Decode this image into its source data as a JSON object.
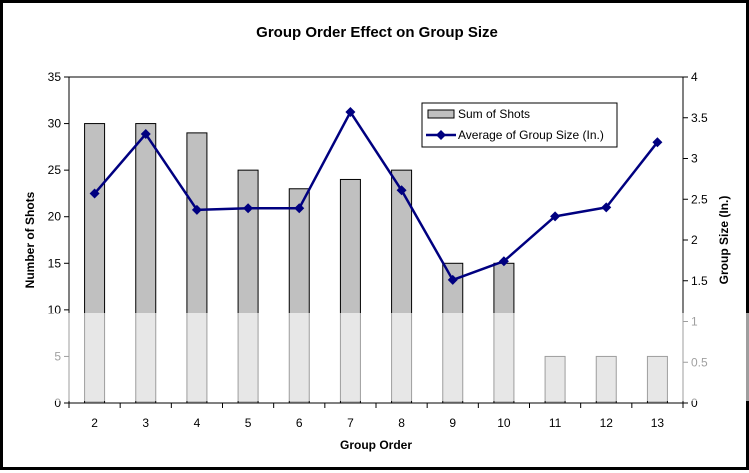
{
  "chart_data": {
    "type": "bar",
    "title": "Group Order Effect on Group Size",
    "xlabel": "Group Order",
    "ylabel": "Number of Shots",
    "y2label": "Group Size (In.)",
    "categories": [
      "2",
      "3",
      "4",
      "5",
      "6",
      "7",
      "8",
      "9",
      "10",
      "11",
      "12",
      "13"
    ],
    "ylim": [
      0,
      35
    ],
    "y2lim": [
      0,
      4
    ],
    "yticks": [
      "0",
      "5",
      "10",
      "15",
      "20",
      "25",
      "30",
      "35"
    ],
    "y2ticks": [
      "0",
      "0.5",
      "1",
      "1.5",
      "2",
      "2.5",
      "3",
      "3.5",
      "4"
    ],
    "grid": false,
    "legend_position": "top-right",
    "series": [
      {
        "name": "Sum of Shots",
        "type": "bar",
        "axis": "left",
        "color": "#c0c0c0",
        "values": [
          30,
          30,
          29,
          25,
          23,
          24,
          25,
          15,
          15,
          5,
          5,
          5
        ]
      },
      {
        "name": "Average of Group Size (In.)",
        "type": "line",
        "axis": "right",
        "color": "#000080",
        "values": [
          2.57,
          3.3,
          2.37,
          2.39,
          2.39,
          3.57,
          2.61,
          1.51,
          1.74,
          2.29,
          2.4,
          3.2
        ]
      }
    ]
  }
}
